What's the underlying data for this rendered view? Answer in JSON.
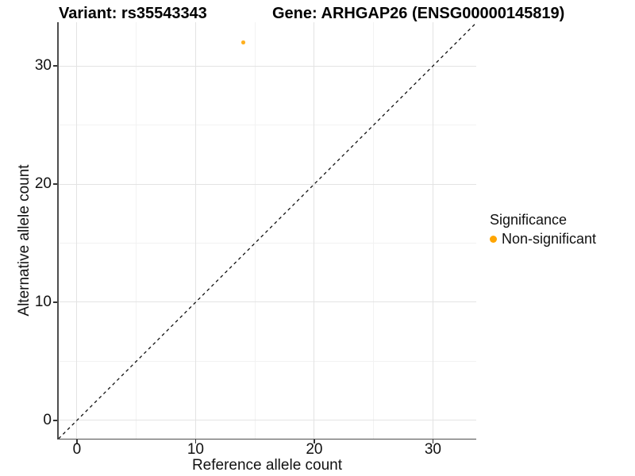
{
  "titles": {
    "variant": "Variant: rs35543343",
    "gene": "Gene: ARHGAP26 (ENSG00000145819)"
  },
  "axes": {
    "x": {
      "label": "Reference allele count",
      "tick_labels": [
        "0",
        "10",
        "20",
        "30"
      ],
      "major_ticks": [
        0,
        10,
        20,
        30
      ],
      "minor_ticks": [
        5,
        15,
        25
      ],
      "range": [
        -1.6,
        33.65
      ]
    },
    "y": {
      "label": "Alternative allele count",
      "tick_labels": [
        "0",
        "10",
        "20",
        "30"
      ],
      "major_ticks": [
        0,
        10,
        20,
        30
      ],
      "minor_ticks": [
        5,
        15,
        25
      ],
      "range": [
        -1.55,
        33.7
      ]
    }
  },
  "legend": {
    "title": "Significance",
    "items": [
      {
        "label": "Non-significant",
        "color": "#FFA500"
      }
    ]
  },
  "colors": {
    "background": "#ffffff",
    "axis_line": "#4d4d4d",
    "tick_mark": "#333333",
    "grid_major": "#e3e3e3",
    "grid_minor": "#f2f2f2",
    "reference_line": "#111111",
    "point": "#FFA500",
    "text": "#000000"
  },
  "chart_data": {
    "type": "scatter",
    "title": "Variant: rs35543343 | Gene: ARHGAP26 (ENSG00000145819)",
    "xlabel": "Reference allele count",
    "ylabel": "Alternative allele count",
    "xlim": [
      -1.6,
      33.65
    ],
    "ylim": [
      -1.55,
      33.7
    ],
    "x_major_ticks": [
      0,
      10,
      20,
      30
    ],
    "x_minor_ticks": [
      5,
      15,
      25
    ],
    "y_major_ticks": [
      0,
      10,
      20,
      30
    ],
    "y_minor_ticks": [
      5,
      15,
      25
    ],
    "grid": true,
    "legend_position": "right",
    "series": [
      {
        "name": "Non-significant",
        "color": "#FFA500",
        "points": [
          {
            "x": 14,
            "y": 32
          }
        ]
      }
    ],
    "reference_line": {
      "type": "identity",
      "slope": 1,
      "intercept": 0,
      "style": "dashed",
      "color": "#111111"
    }
  }
}
